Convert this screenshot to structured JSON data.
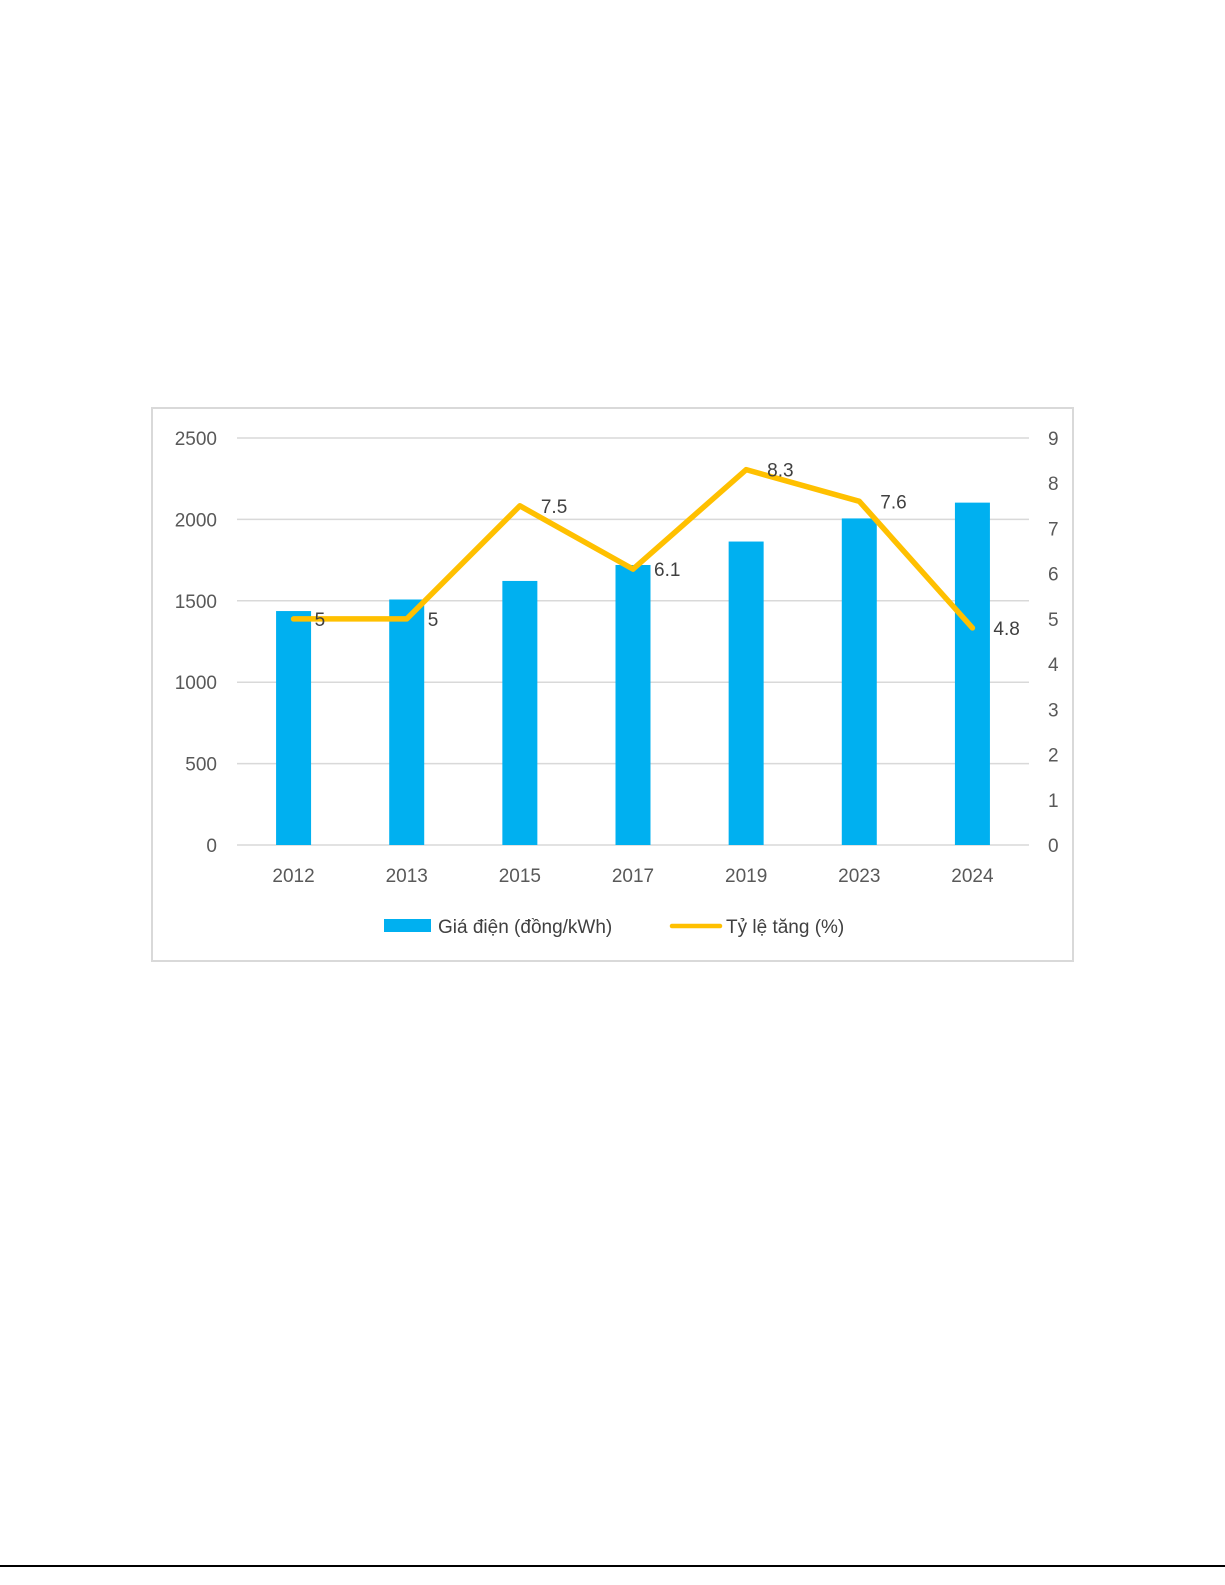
{
  "colors": {
    "bar": "#00b0f0",
    "line": "#ffc000",
    "grid": "#d9d9d9",
    "axis_text": "#595959"
  },
  "chart_data": {
    "type": "bar",
    "categories": [
      "2012",
      "2013",
      "2015",
      "2017",
      "2019",
      "2023",
      "2024"
    ],
    "series": [
      {
        "name": "Giá điện (đồng/kWh)",
        "type": "bar",
        "axis": "left",
        "values": [
          1437,
          1508,
          1622,
          1720,
          1864,
          2006,
          2103
        ]
      },
      {
        "name": "Tỷ lệ tăng (%)",
        "type": "line",
        "axis": "right",
        "values": [
          5,
          5,
          7.5,
          6.1,
          8.3,
          7.6,
          4.8
        ],
        "data_labels": [
          "5",
          "5",
          "7.5",
          "6.1",
          "8.3",
          "7.6",
          "4.8"
        ]
      }
    ],
    "y_left": {
      "range": [
        0,
        2500
      ],
      "ticks": [
        "0",
        "500",
        "1000",
        "1500",
        "2000",
        "2500"
      ]
    },
    "y_right": {
      "range": [
        0,
        9
      ],
      "ticks": [
        "0",
        "1",
        "2",
        "3",
        "4",
        "5",
        "6",
        "7",
        "8",
        "9"
      ]
    },
    "grid": true,
    "legend": "bottom"
  }
}
